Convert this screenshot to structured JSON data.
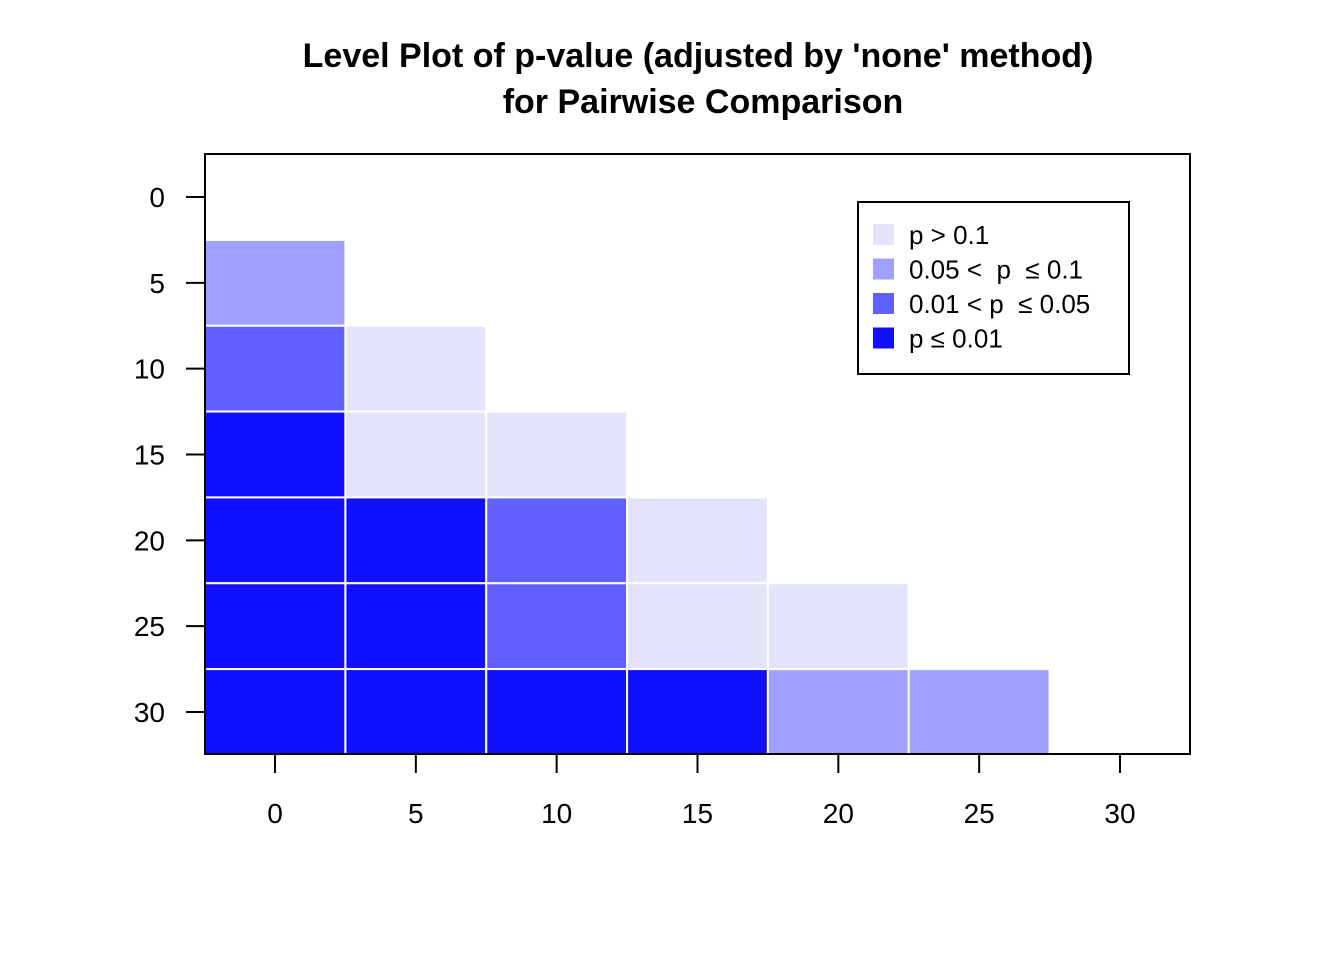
{
  "chart_data": {
    "type": "heatmap",
    "title_lines": [
      "Level Plot of p-value (adjusted by 'none' method)",
      "for Pairwise Comparison"
    ],
    "xlabel": "",
    "ylabel": "",
    "x_ticks": [
      0,
      5,
      10,
      15,
      20,
      25,
      30
    ],
    "y_ticks": [
      0,
      5,
      10,
      15,
      20,
      25,
      30
    ],
    "xlim": [
      -2.5,
      32.5
    ],
    "ylim": [
      32.5,
      -2.5
    ],
    "y_reversed": true,
    "legend": {
      "position": "top-right",
      "entries": [
        {
          "label": "p > 0.1",
          "color": "#E3E3FC",
          "level": 0
        },
        {
          "label": "0.05 <  p  ≤ 0.1",
          "color": "#A0A0FF",
          "level": 1
        },
        {
          "label": "0.01 < p  ≤ 0.05",
          "color": "#6060FF",
          "level": 2
        },
        {
          "label": "p ≤ 0.01",
          "color": "#1010FF",
          "level": 3
        }
      ]
    },
    "cells": [
      {
        "x": 0,
        "y": 5,
        "level": 1
      },
      {
        "x": 0,
        "y": 10,
        "level": 2
      },
      {
        "x": 5,
        "y": 10,
        "level": 0
      },
      {
        "x": 0,
        "y": 15,
        "level": 3
      },
      {
        "x": 5,
        "y": 15,
        "level": 0
      },
      {
        "x": 10,
        "y": 15,
        "level": 0
      },
      {
        "x": 0,
        "y": 20,
        "level": 3
      },
      {
        "x": 5,
        "y": 20,
        "level": 3
      },
      {
        "x": 10,
        "y": 20,
        "level": 2
      },
      {
        "x": 15,
        "y": 20,
        "level": 0
      },
      {
        "x": 0,
        "y": 25,
        "level": 3
      },
      {
        "x": 5,
        "y": 25,
        "level": 3
      },
      {
        "x": 10,
        "y": 25,
        "level": 2
      },
      {
        "x": 15,
        "y": 25,
        "level": 0
      },
      {
        "x": 20,
        "y": 25,
        "level": 0
      },
      {
        "x": 0,
        "y": 30,
        "level": 3
      },
      {
        "x": 5,
        "y": 30,
        "level": 3
      },
      {
        "x": 10,
        "y": 30,
        "level": 3
      },
      {
        "x": 15,
        "y": 30,
        "level": 3
      },
      {
        "x": 20,
        "y": 30,
        "level": 1
      },
      {
        "x": 25,
        "y": 30,
        "level": 1
      }
    ],
    "cell_size": 5
  }
}
